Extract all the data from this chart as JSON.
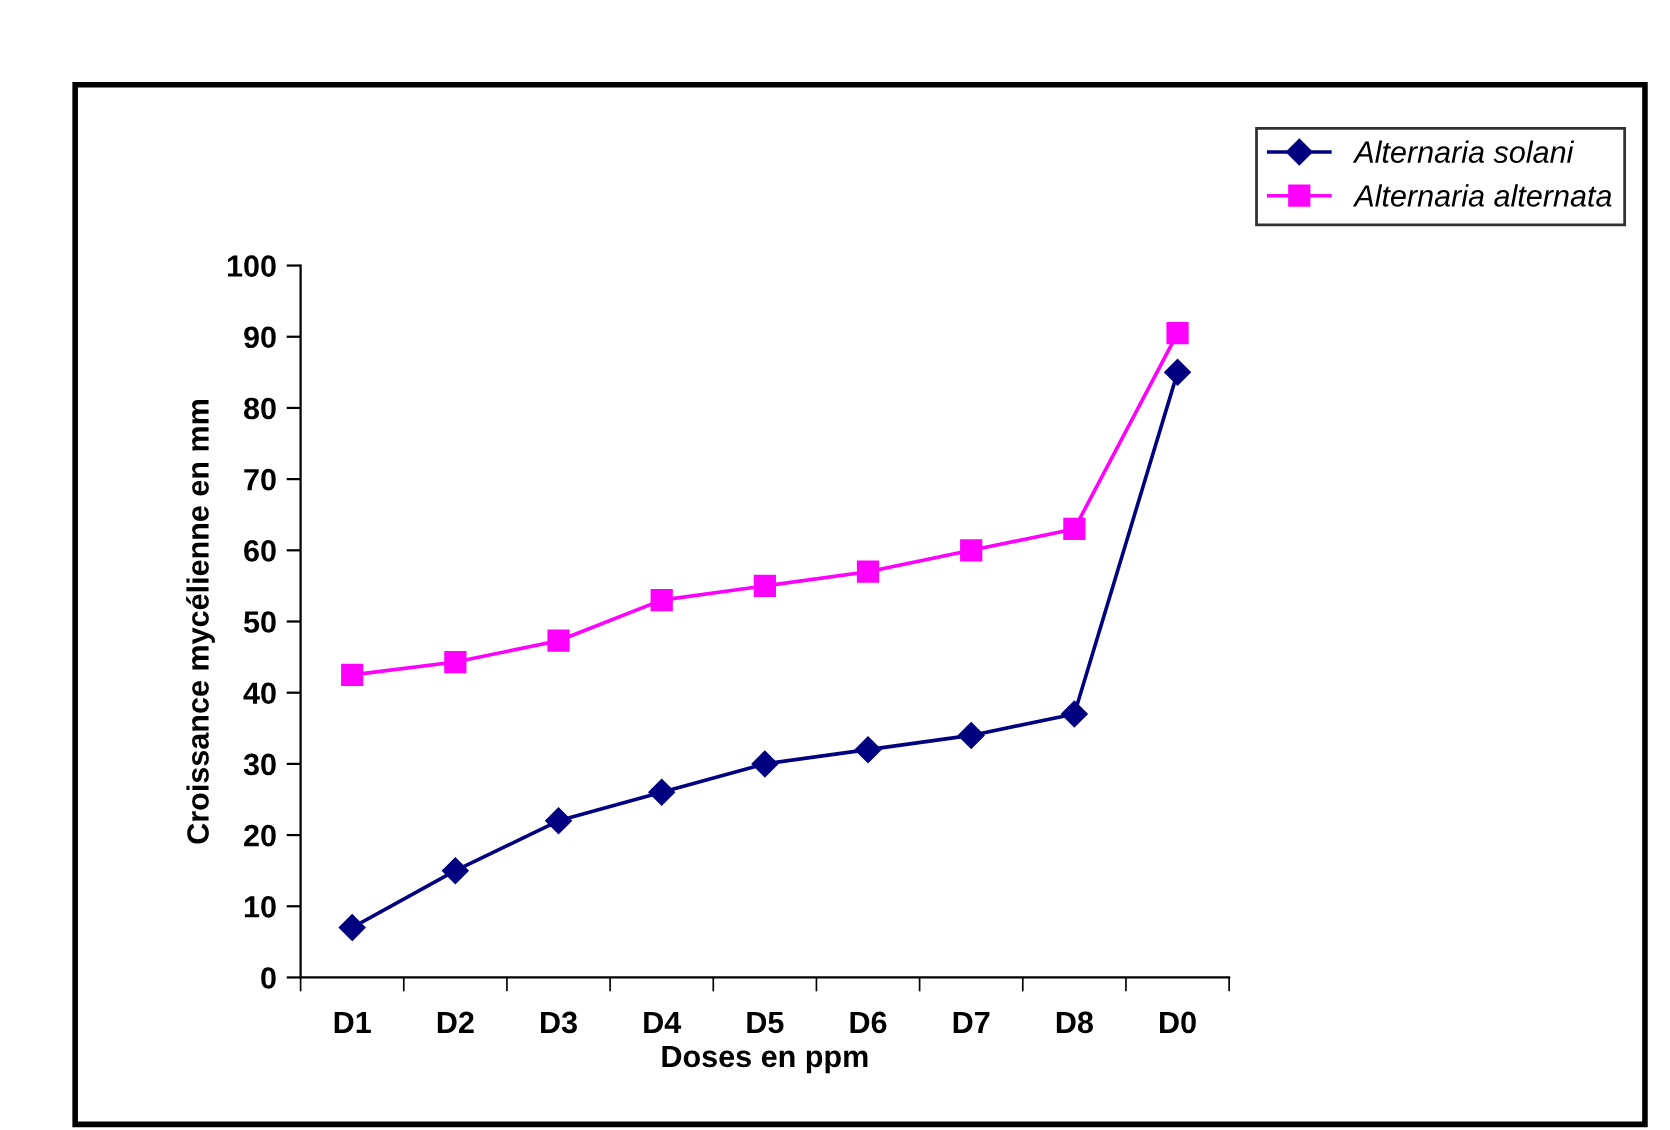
{
  "chart_data": {
    "type": "line",
    "xlabel": "Doses en ppm",
    "ylabel": "Croissance mycélienne en mm",
    "categories": [
      "D1",
      "D2",
      "D3",
      "D4",
      "D5",
      "D6",
      "D7",
      "D8",
      "D0"
    ],
    "series": [
      {
        "name": "Alternaria solani",
        "color": "#000080",
        "marker": "diamond",
        "values": [
          7,
          15,
          22,
          26,
          30,
          32,
          34,
          37,
          85
        ]
      },
      {
        "name": "Alternaria alternata",
        "color": "#ff00ff",
        "marker": "square",
        "values": [
          42.5,
          44.3,
          47.3,
          53,
          55,
          57,
          60,
          63,
          90.5
        ]
      }
    ],
    "ylim": [
      0,
      100
    ],
    "yticks": [
      0,
      10,
      20,
      30,
      40,
      50,
      60,
      70,
      80,
      90,
      100
    ],
    "grid": false,
    "legend": "top right",
    "line_style": "solid"
  }
}
